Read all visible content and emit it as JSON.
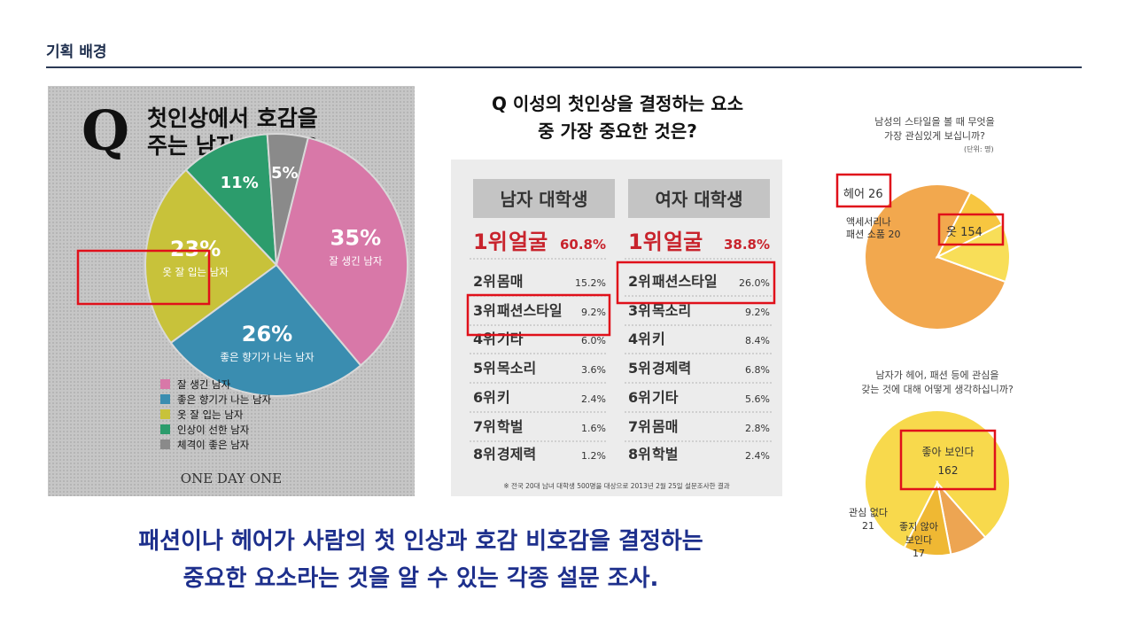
{
  "header": {
    "title": "기획 배경"
  },
  "chart_data": [
    {
      "type": "pie",
      "title_lines": [
        "첫인상에서 호감을",
        "주는 남자 유형은?"
      ],
      "q_letter": "Q",
      "brand": "ONE DAY ONE",
      "slices": [
        {
          "label": "잘 생긴 남자",
          "value": 35,
          "value_label": "35%",
          "color": "#d878a8"
        },
        {
          "label": "좋은 향기가 나는 남자",
          "value": 26,
          "value_label": "26%",
          "color": "#3a8db0"
        },
        {
          "label": "옷 잘 입는 남자",
          "value": 23,
          "value_label": "23%",
          "color": "#c8c23a"
        },
        {
          "label": "인상이 선한 남자",
          "value": 11,
          "value_label": "11%",
          "color": "#2c9c6c"
        },
        {
          "label": "체격이 좋은 남자",
          "value": 5,
          "value_label": "5%",
          "color": "#8a8a8a"
        }
      ],
      "legend": [
        "잘 생긴 남자",
        "좋은 향기가 나는 남자",
        "옷 잘 입는 남자",
        "인상이 선한 남자",
        "체격이 좋은 남자"
      ],
      "legend_position": "bottom",
      "highlighted": "옷 잘 입는 남자"
    },
    {
      "type": "table",
      "title_lines": [
        "Q 이성의 첫인상을 결정하는 요소",
        "중 가장 중요한 것은?"
      ],
      "columns": [
        "남자 대학생",
        "여자 대학생"
      ],
      "male": [
        {
          "rank": "1위",
          "item": "얼굴",
          "value": "60.8%"
        },
        {
          "rank": "2위",
          "item": "몸매",
          "value": "15.2%"
        },
        {
          "rank": "3위",
          "item": "패션스타일",
          "value": "9.2%"
        },
        {
          "rank": "4위",
          "item": "기타",
          "value": "6.0%"
        },
        {
          "rank": "5위",
          "item": "목소리",
          "value": "3.6%"
        },
        {
          "rank": "6위",
          "item": "키",
          "value": "2.4%"
        },
        {
          "rank": "7위",
          "item": "학벌",
          "value": "1.6%"
        },
        {
          "rank": "8위",
          "item": "경제력",
          "value": "1.2%"
        }
      ],
      "female": [
        {
          "rank": "1위",
          "item": "얼굴",
          "value": "38.8%"
        },
        {
          "rank": "2위",
          "item": "패션스타일",
          "value": "26.0%"
        },
        {
          "rank": "3위",
          "item": "목소리",
          "value": "9.2%"
        },
        {
          "rank": "4위",
          "item": "키",
          "value": "8.4%"
        },
        {
          "rank": "5위",
          "item": "경제력",
          "value": "6.8%"
        },
        {
          "rank": "6위",
          "item": "기타",
          "value": "5.6%"
        },
        {
          "rank": "7위",
          "item": "몸매",
          "value": "2.8%"
        },
        {
          "rank": "8위",
          "item": "학벌",
          "value": "2.4%"
        }
      ],
      "footnote": "※ 전국 20대 남녀 대학생 500명을 대상으로 2013년 2월 25일 설문조사한 결과"
    },
    {
      "type": "pie",
      "title_lines": [
        "남성의 스타일을 볼 때 무엇을",
        "가장 관심있게 보십니까?"
      ],
      "unit": "(단위: 명)",
      "slices": [
        {
          "label": "옷",
          "value": 154,
          "color": "#f2a84e"
        },
        {
          "label": "액세서리나 패션 소품",
          "value": 20,
          "color": "#f7c640"
        },
        {
          "label": "헤어",
          "value": 26,
          "color": "#f8de58"
        }
      ],
      "slice_text": [
        {
          "lines": [
            "옷 154"
          ]
        },
        {
          "lines": [
            "액세서리나",
            "패션 소품 20"
          ]
        },
        {
          "lines": [
            "헤어 26"
          ]
        }
      ]
    },
    {
      "type": "pie",
      "title_lines": [
        "남자가 헤어, 패션 등에 관심을",
        "갖는 것에 대해 어떻게 생각하십니까?"
      ],
      "slices": [
        {
          "label": "좋아 보인다",
          "value": 162,
          "color": "#f8d94c"
        },
        {
          "label": "좋지 않아 보인다",
          "value": 17,
          "color": "#eda552"
        },
        {
          "label": "관심 없다",
          "value": 21,
          "color": "#efb833"
        }
      ],
      "slice_text": [
        {
          "lines": [
            "좋아 보인다",
            "162"
          ]
        },
        {
          "lines": [
            "좋지 않아",
            "보인다",
            "17"
          ]
        },
        {
          "lines": [
            "관심 없다",
            "21"
          ]
        }
      ]
    }
  ],
  "caption": {
    "line1": "패션이나 헤어가 사람의 첫 인상과 호감 비호감을 결정하는",
    "line2": "중요한 요소라는 것을 알 수 있는 각종 설문 조사."
  }
}
